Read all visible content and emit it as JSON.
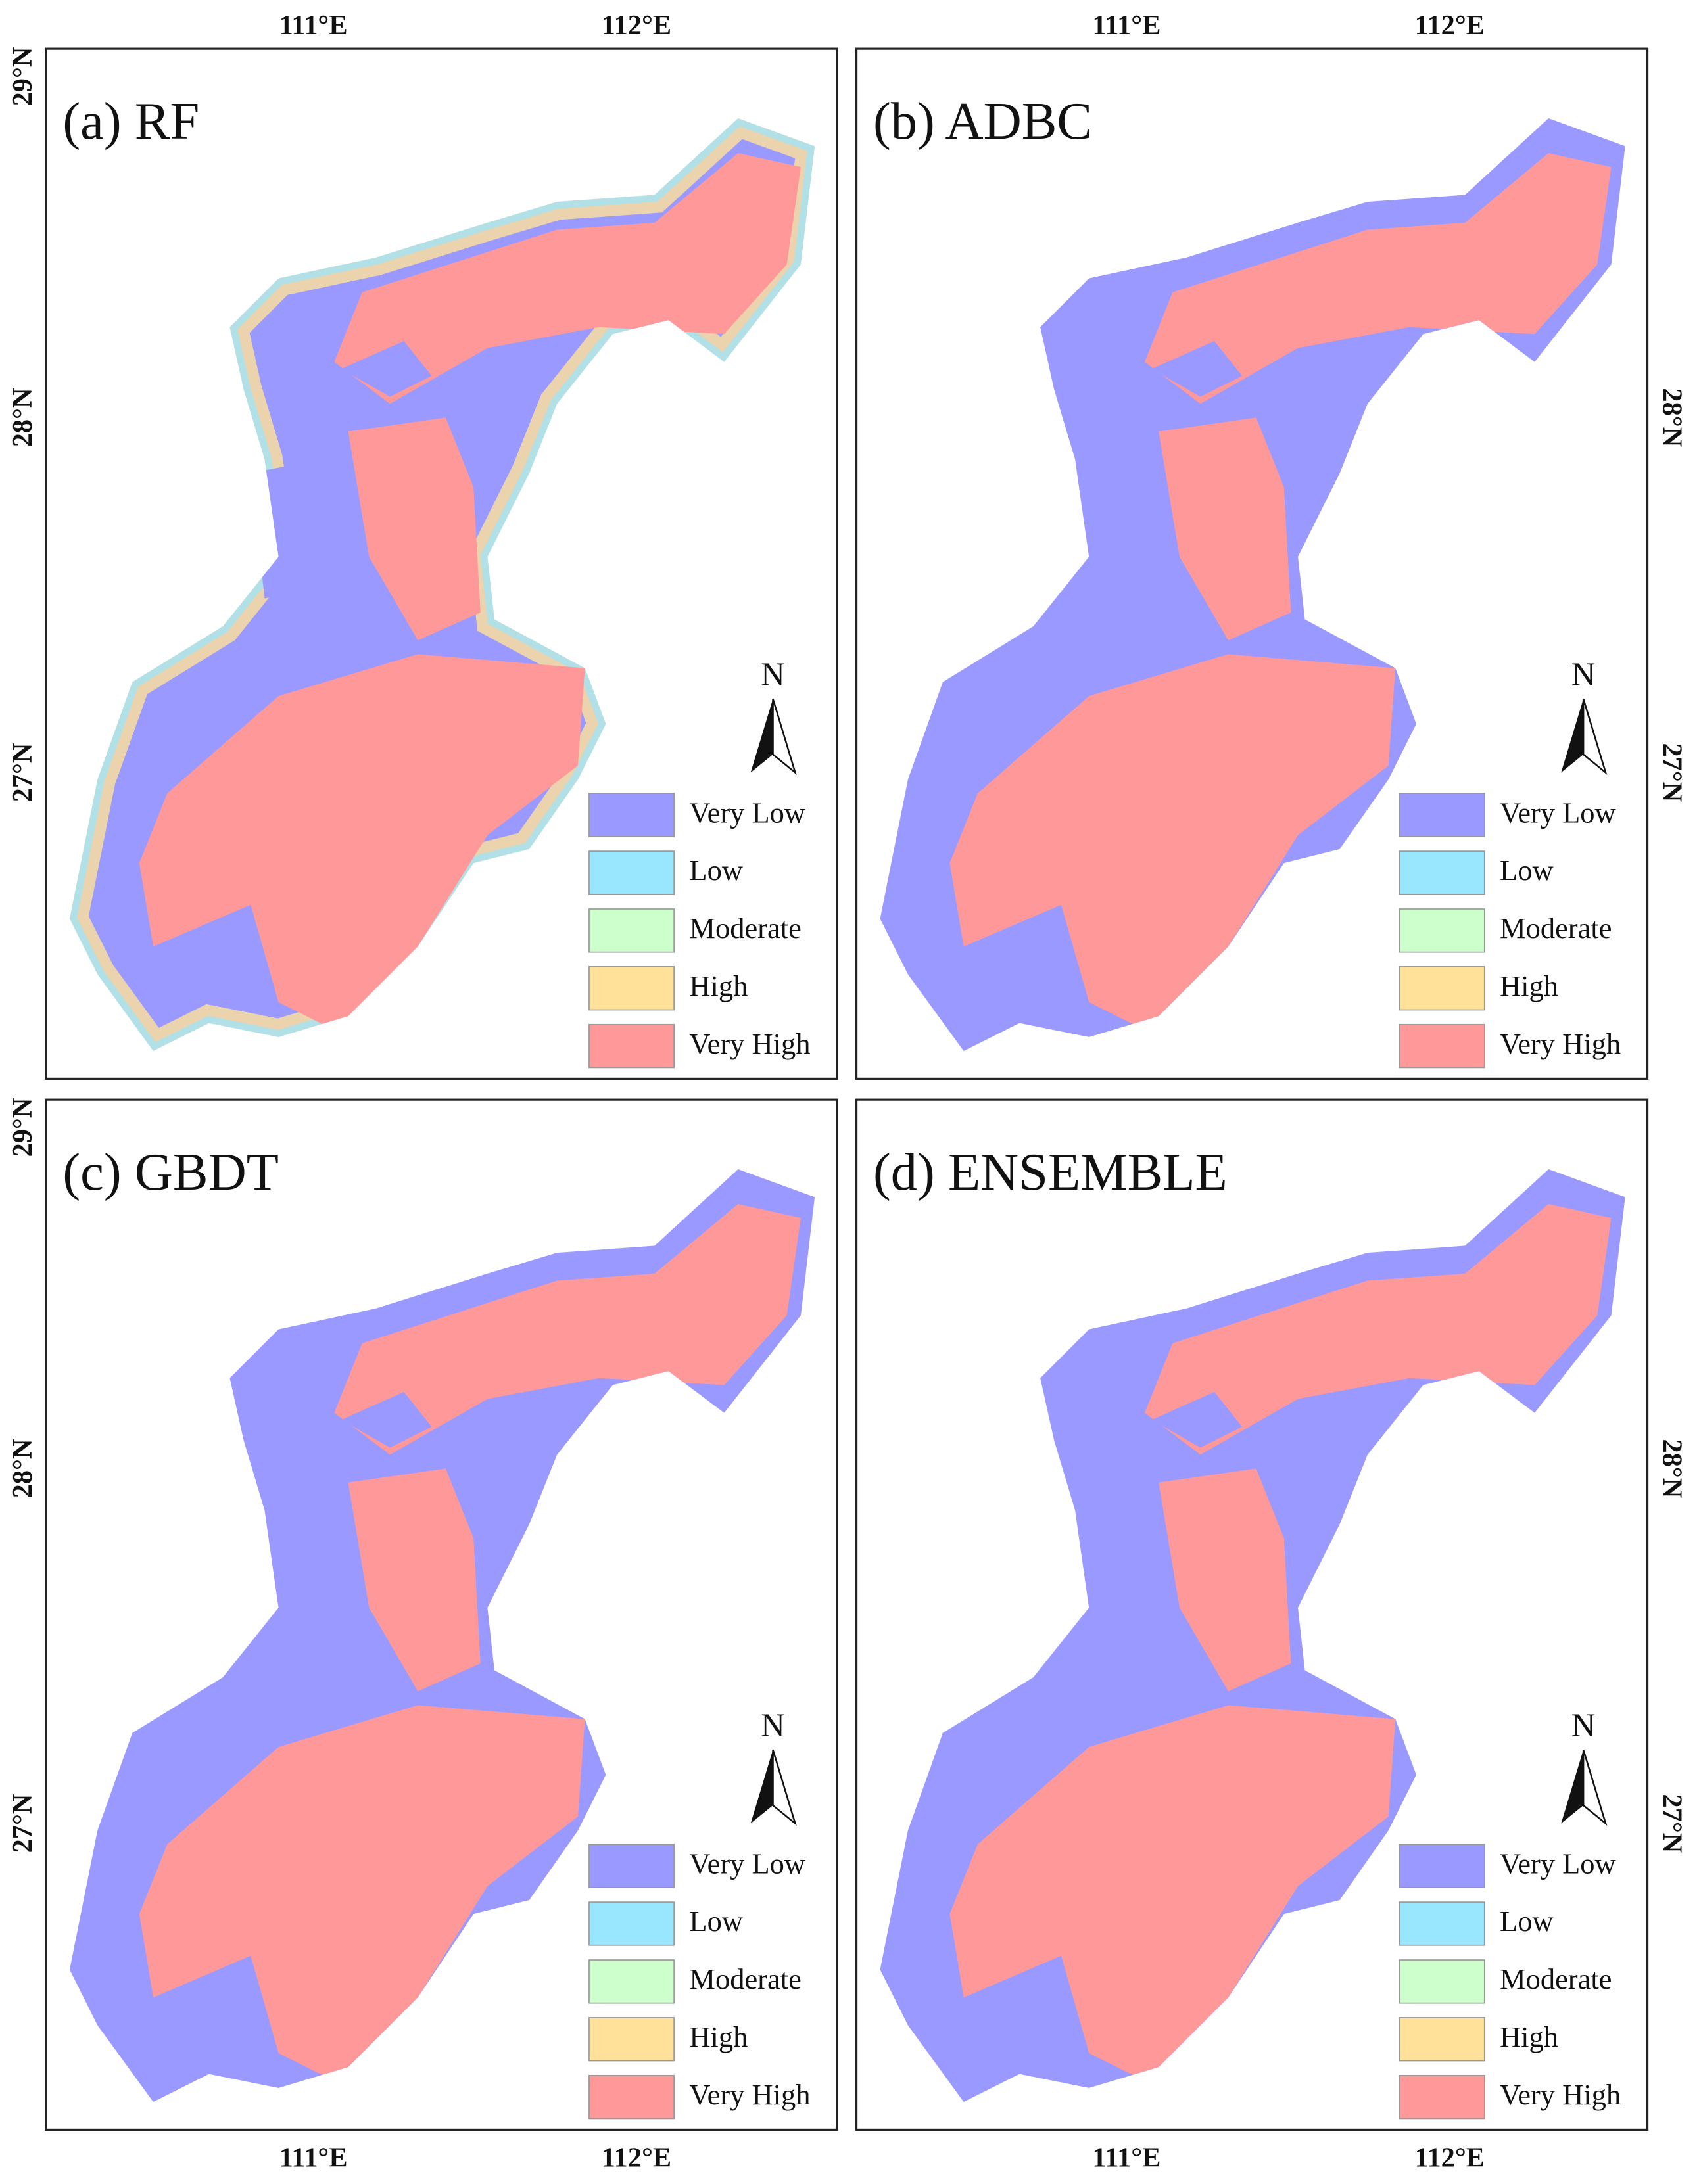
{
  "panels": [
    {
      "title": "(a) RF",
      "lon_labels": [
        "111°E",
        "112°E"
      ],
      "lat_labels": [
        "29°N",
        "28°N",
        "27°N"
      ]
    },
    {
      "title": "(b) ADBC",
      "lon_labels": [
        "111°E",
        "112°E"
      ],
      "lat_labels": [
        "28°N",
        "27°N"
      ]
    },
    {
      "title": "(c) GBDT",
      "lon_labels": [
        "111°E",
        "112°E"
      ],
      "lat_labels": [
        "29°N",
        "28°N",
        "27°N"
      ]
    },
    {
      "title": "(d) ENSEMBLE",
      "lon_labels": [
        "111°E",
        "112°E"
      ],
      "lat_labels": [
        "28°N",
        "27°N"
      ]
    }
  ],
  "legend": [
    {
      "label": "Very Low",
      "color": "#9999ff"
    },
    {
      "label": "Low",
      "color": "#99e6ff"
    },
    {
      "label": "Moderate",
      "color": "#ccffcc"
    },
    {
      "label": "High",
      "color": "#ffe199"
    },
    {
      "label": "Very High",
      "color": "#ff9999"
    }
  ],
  "north": "N"
}
